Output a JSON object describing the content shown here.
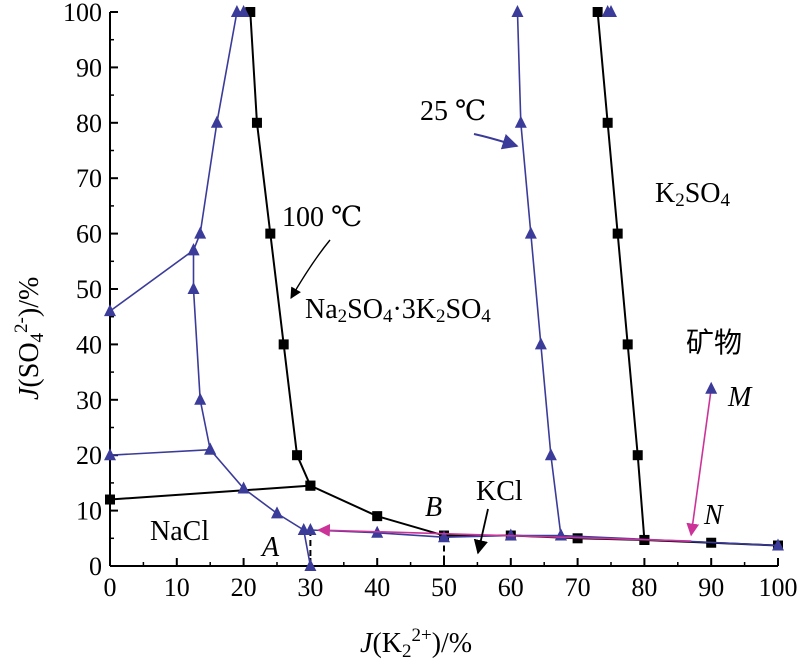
{
  "chart_data": {
    "type": "line",
    "xlabel_var": "J",
    "xlabel_species": "(K",
    "xlabel_sub": "2",
    "xlabel_sup": "2+",
    "xlabel_unit": ")/%",
    "ylabel_var": "J",
    "ylabel_species": "(SO",
    "ylabel_sub": "4",
    "ylabel_sup": "2-",
    "ylabel_unit": ")/%",
    "xlim": [
      0,
      100
    ],
    "ylim": [
      0,
      100
    ],
    "xticks": [
      0,
      10,
      20,
      30,
      40,
      50,
      60,
      70,
      80,
      90,
      100
    ],
    "yticks": [
      0,
      10,
      20,
      30,
      40,
      50,
      60,
      70,
      80,
      90,
      100
    ],
    "colors": {
      "black": "#000000",
      "blue": "#3b3b9a",
      "magenta": "#cc3399"
    },
    "series": [
      {
        "color": "black",
        "marker": "square",
        "x": [
          0,
          30
        ],
        "y": [
          12,
          14.5
        ]
      },
      {
        "color": "black",
        "marker": "square",
        "x": [
          21,
          22,
          24,
          26,
          28,
          30,
          40,
          50,
          60,
          70,
          80,
          90,
          100
        ],
        "y": [
          100,
          80,
          60,
          40,
          20,
          14.5,
          9,
          5.5,
          5.5,
          5,
          4.7,
          4.2,
          3.7
        ]
      },
      {
        "color": "black",
        "marker": "square",
        "x": [
          73,
          74.5,
          76,
          77.5,
          79,
          80
        ],
        "y": [
          100,
          80,
          60,
          40,
          20,
          4.7
        ]
      },
      {
        "color": "blue",
        "marker": "triangle",
        "x": [
          0,
          12.5,
          13.5,
          16,
          19,
          20
        ],
        "y": [
          46,
          57,
          60,
          80,
          100,
          100
        ]
      },
      {
        "color": "blue",
        "marker": "triangle",
        "x": [
          12.5,
          12.5,
          13.5,
          15,
          20,
          25,
          29,
          30
        ],
        "y": [
          57,
          50,
          30,
          21,
          14,
          9.5,
          6.5,
          0
        ]
      },
      {
        "color": "blue",
        "marker": "triangle",
        "x": [
          0,
          15
        ],
        "y": [
          20,
          21
        ]
      },
      {
        "color": "blue",
        "marker": "triangle",
        "x": [
          30,
          40,
          50,
          60,
          67.5,
          100
        ],
        "y": [
          6.5,
          6,
          5.2,
          5.5,
          5.5,
          3.7
        ]
      },
      {
        "color": "blue",
        "marker": "triangle",
        "x": [
          67.5,
          66,
          64.5,
          63,
          61.5,
          61
        ],
        "y": [
          5.5,
          20,
          40,
          60,
          80,
          100
        ]
      },
      {
        "color": "blue",
        "marker": "triangle",
        "x": [
          74.5,
          75
        ],
        "y": [
          100,
          100
        ]
      }
    ],
    "points": [
      {
        "label": "M",
        "x": 90,
        "y": 32
      },
      {
        "label": "N",
        "x": 87,
        "y": 4.5
      },
      {
        "label": "A",
        "x": 30,
        "y": 6.5
      },
      {
        "label": "B",
        "x": 50,
        "y": 5.5
      }
    ],
    "process_line": [
      {
        "x": 90,
        "y": 32
      },
      {
        "x": 87,
        "y": 4.5
      },
      {
        "x": 30,
        "y": 6.5
      }
    ],
    "region_labels": {
      "nacl": "NaCl",
      "kcl": "KCl",
      "k2so4_a": "K",
      "k2so4_sub": "2",
      "k2so4_b": "SO",
      "k2so4_sub2": "4",
      "glaserite_a": "Na",
      "glaserite_s1": "2",
      "glaserite_b": "SO",
      "glaserite_s2": "4",
      "glaserite_c": "·3K",
      "glaserite_s3": "2",
      "glaserite_d": "SO",
      "glaserite_s4": "4",
      "mineral": "矿物",
      "temp_25": "25 ℃",
      "temp_100": "100 ℃"
    }
  }
}
